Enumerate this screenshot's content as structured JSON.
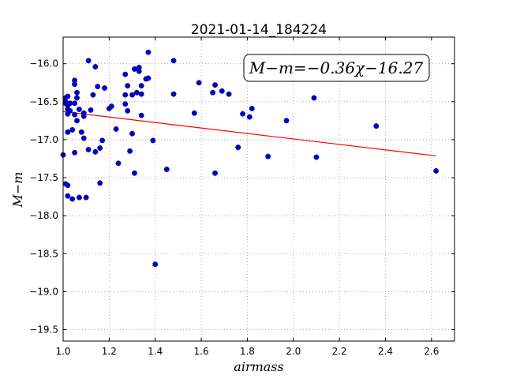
{
  "chart_data": {
    "type": "scatter",
    "title": "2021-01-14_184224",
    "xlabel": "airmass",
    "ylabel": "M−m",
    "xlim": [
      1.0,
      2.7
    ],
    "ylim": [
      -19.65,
      -15.65
    ],
    "x_ticks": [
      1.0,
      1.2,
      1.4,
      1.6,
      1.8,
      2.0,
      2.2,
      2.4,
      2.6
    ],
    "x_tick_labels": [
      "1.0",
      "1.2",
      "1.4",
      "1.6",
      "1.8",
      "2.0",
      "2.2",
      "2.4",
      "2.6"
    ],
    "y_ticks": [
      -16.0,
      -16.5,
      -17.0,
      -17.5,
      -18.0,
      -18.5,
      -19.0,
      -19.5
    ],
    "y_tick_labels": [
      "−16.0",
      "−16.5",
      "−17.0",
      "−17.5",
      "−18.0",
      "−18.5",
      "−19.0",
      "−19.5"
    ],
    "grid": true,
    "annotation": "M−m=−0.36χ−16.27",
    "colors": {
      "points": "#0000cc",
      "fit": "#ff0000",
      "grid": "#9a9a9a"
    },
    "fit": {
      "slope": -0.36,
      "intercept": -16.27,
      "x_range": [
        1.0,
        2.62
      ]
    },
    "points": [
      [
        1.0,
        -17.2
      ],
      [
        1.01,
        -16.45
      ],
      [
        1.01,
        -16.5
      ],
      [
        1.01,
        -16.52
      ],
      [
        1.02,
        -16.43
      ],
      [
        1.02,
        -16.55
      ],
      [
        1.02,
        -16.6
      ],
      [
        1.02,
        -16.66
      ],
      [
        1.02,
        -16.9
      ],
      [
        1.01,
        -17.58
      ],
      [
        1.02,
        -17.6
      ],
      [
        1.02,
        -17.74
      ],
      [
        1.03,
        -16.52
      ],
      [
        1.03,
        -16.62
      ],
      [
        1.04,
        -16.87
      ],
      [
        1.04,
        -17.78
      ],
      [
        1.05,
        -16.22
      ],
      [
        1.05,
        -16.27
      ],
      [
        1.05,
        -16.52
      ],
      [
        1.05,
        -16.67
      ],
      [
        1.05,
        -17.17
      ],
      [
        1.06,
        -16.38
      ],
      [
        1.06,
        -16.45
      ],
      [
        1.06,
        -16.75
      ],
      [
        1.07,
        -16.6
      ],
      [
        1.07,
        -17.76
      ],
      [
        1.08,
        -16.9
      ],
      [
        1.09,
        -16.65
      ],
      [
        1.09,
        -16.69
      ],
      [
        1.09,
        -16.98
      ],
      [
        1.1,
        -17.76
      ],
      [
        1.11,
        -15.96
      ],
      [
        1.11,
        -17.13
      ],
      [
        1.12,
        -16.61
      ],
      [
        1.13,
        -16.41
      ],
      [
        1.14,
        -16.04
      ],
      [
        1.14,
        -17.16
      ],
      [
        1.15,
        -16.3
      ],
      [
        1.16,
        -17.57
      ],
      [
        1.16,
        -17.11
      ],
      [
        1.17,
        -17.01
      ],
      [
        1.18,
        -16.32
      ],
      [
        1.2,
        -16.59
      ],
      [
        1.21,
        -16.56
      ],
      [
        1.23,
        -16.86
      ],
      [
        1.24,
        -17.31
      ],
      [
        1.27,
        -16.14
      ],
      [
        1.27,
        -16.41
      ],
      [
        1.27,
        -16.53
      ],
      [
        1.28,
        -16.29
      ],
      [
        1.28,
        -16.62
      ],
      [
        1.29,
        -17.15
      ],
      [
        1.3,
        -16.92
      ],
      [
        1.3,
        -16.41
      ],
      [
        1.31,
        -16.07
      ],
      [
        1.31,
        -17.44
      ],
      [
        1.32,
        -16.38
      ],
      [
        1.33,
        -16.05
      ],
      [
        1.33,
        -16.1
      ],
      [
        1.34,
        -16.29
      ],
      [
        1.34,
        -16.4
      ],
      [
        1.34,
        -16.68
      ],
      [
        1.36,
        -16.2
      ],
      [
        1.37,
        -16.19
      ],
      [
        1.37,
        -15.85
      ],
      [
        1.39,
        -17.01
      ],
      [
        1.4,
        -18.64
      ],
      [
        1.45,
        -17.39
      ],
      [
        1.48,
        -15.96
      ],
      [
        1.48,
        -16.4
      ],
      [
        1.57,
        -16.65
      ],
      [
        1.59,
        -16.25
      ],
      [
        1.65,
        -16.38
      ],
      [
        1.66,
        -17.44
      ],
      [
        1.66,
        -16.28
      ],
      [
        1.69,
        -16.36
      ],
      [
        1.72,
        -16.4
      ],
      [
        1.76,
        -17.1
      ],
      [
        1.78,
        -16.66
      ],
      [
        1.81,
        -16.7
      ],
      [
        1.82,
        -16.59
      ],
      [
        1.89,
        -17.22
      ],
      [
        1.97,
        -16.75
      ],
      [
        2.09,
        -16.45
      ],
      [
        2.1,
        -17.23
      ],
      [
        2.36,
        -16.82
      ],
      [
        2.62,
        -17.41
      ]
    ]
  }
}
